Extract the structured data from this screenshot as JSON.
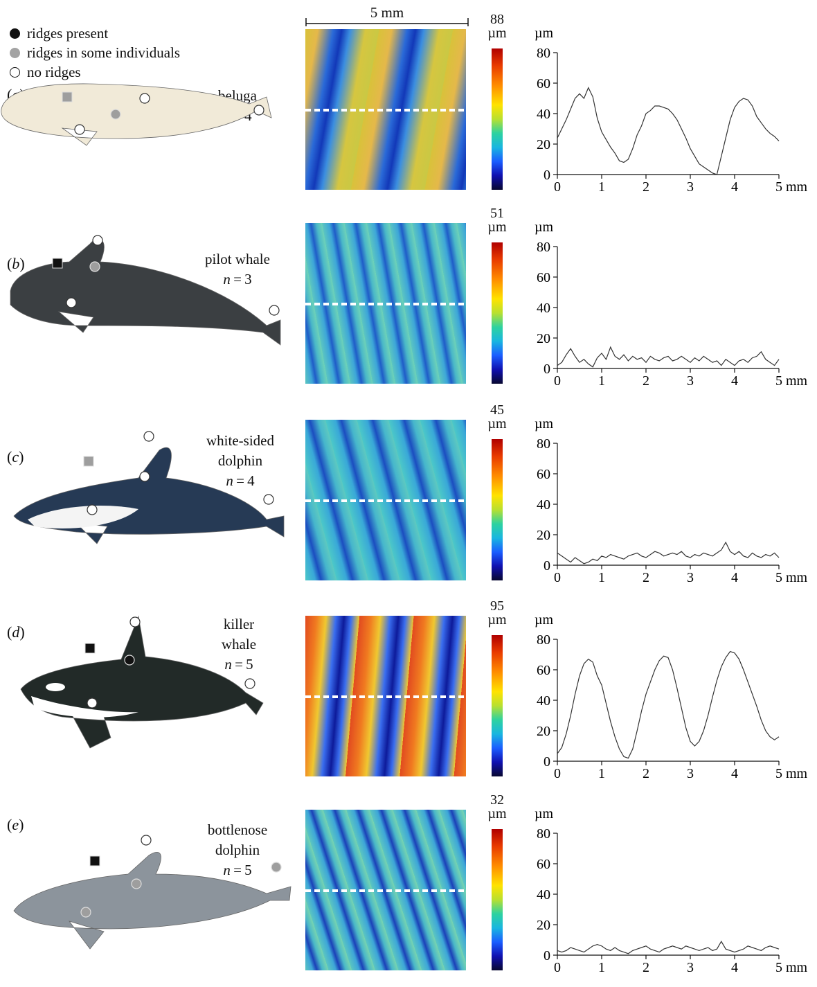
{
  "legend": {
    "present": "ridges present",
    "some": "ridges in some individuals",
    "none": "no ridges"
  },
  "scale_bar_label": "5 mm",
  "colors": {
    "present": "#111111",
    "some": "#9e9e9e",
    "none": "#ffffff"
  },
  "panels": [
    {
      "letter": "a",
      "name_lines": [
        "beluga"
      ],
      "n": "4",
      "cbar_max": "88",
      "cbar_unit": "µm",
      "body_color": "#f1ead8"
    },
    {
      "letter": "b",
      "name_lines": [
        "pilot whale"
      ],
      "n": "3",
      "cbar_max": "51",
      "cbar_unit": "µm",
      "body_color": "#3b3f42"
    },
    {
      "letter": "c",
      "name_lines": [
        "white-sided",
        "dolphin"
      ],
      "n": "4",
      "cbar_max": "45",
      "cbar_unit": "µm",
      "body_color": "#263a55"
    },
    {
      "letter": "d",
      "name_lines": [
        "killer",
        "whale"
      ],
      "n": "5",
      "cbar_max": "95",
      "cbar_unit": "µm",
      "body_color": "#222a28"
    },
    {
      "letter": "e",
      "name_lines": [
        "bottlenose",
        "dolphin"
      ],
      "n": "5",
      "cbar_max": "32",
      "cbar_unit": "µm",
      "body_color": "#8c949c"
    }
  ],
  "chart_data": [
    {
      "type": "line",
      "panel": "a",
      "xlabel": "mm",
      "ylabel": "µm",
      "xlim": [
        0,
        5
      ],
      "ylim": [
        0,
        80
      ],
      "xticks": [
        "0",
        "1",
        "2",
        "3",
        "4",
        "5"
      ],
      "yticks": [
        "0",
        "20",
        "40",
        "60",
        "80"
      ],
      "x": [
        0,
        0.1,
        0.2,
        0.3,
        0.4,
        0.5,
        0.6,
        0.7,
        0.8,
        0.9,
        1.0,
        1.1,
        1.2,
        1.3,
        1.4,
        1.5,
        1.6,
        1.7,
        1.8,
        1.9,
        2.0,
        2.1,
        2.2,
        2.3,
        2.4,
        2.5,
        2.6,
        2.7,
        2.8,
        2.9,
        3.0,
        3.1,
        3.2,
        3.3,
        3.4,
        3.5,
        3.6,
        3.7,
        3.8,
        3.9,
        4.0,
        4.1,
        4.2,
        4.3,
        4.4,
        4.5,
        4.6,
        4.7,
        4.8,
        4.9,
        5.0
      ],
      "y": [
        24,
        30,
        36,
        43,
        50,
        53,
        50,
        57,
        51,
        37,
        28,
        23,
        18,
        14,
        9,
        8,
        10,
        17,
        26,
        32,
        40,
        42,
        45,
        45,
        44,
        43,
        40,
        36,
        30,
        24,
        17,
        12,
        7,
        5,
        3,
        1,
        0,
        12,
        24,
        36,
        44,
        48,
        50,
        49,
        45,
        38,
        34,
        30,
        27,
        25,
        22
      ]
    },
    {
      "type": "line",
      "panel": "b",
      "xlabel": "mm",
      "ylabel": "µm",
      "xlim": [
        0,
        5
      ],
      "ylim": [
        0,
        80
      ],
      "xticks": [
        "0",
        "1",
        "2",
        "3",
        "4",
        "5"
      ],
      "yticks": [
        "0",
        "20",
        "40",
        "60",
        "80"
      ],
      "x": [
        0,
        0.1,
        0.2,
        0.3,
        0.4,
        0.5,
        0.6,
        0.7,
        0.8,
        0.9,
        1.0,
        1.1,
        1.2,
        1.3,
        1.4,
        1.5,
        1.6,
        1.7,
        1.8,
        1.9,
        2.0,
        2.1,
        2.2,
        2.3,
        2.4,
        2.5,
        2.6,
        2.7,
        2.8,
        2.9,
        3.0,
        3.1,
        3.2,
        3.3,
        3.4,
        3.5,
        3.6,
        3.7,
        3.8,
        3.9,
        4.0,
        4.1,
        4.2,
        4.3,
        4.4,
        4.5,
        4.6,
        4.7,
        4.8,
        4.9,
        5.0
      ],
      "y": [
        2,
        4,
        9,
        13,
        8,
        4,
        6,
        3,
        1,
        7,
        10,
        6,
        14,
        8,
        6,
        9,
        5,
        8,
        6,
        7,
        4,
        8,
        6,
        5,
        7,
        8,
        5,
        6,
        8,
        6,
        4,
        7,
        5,
        8,
        6,
        4,
        5,
        2,
        6,
        4,
        2,
        5,
        6,
        4,
        7,
        8,
        11,
        6,
        4,
        2,
        6
      ]
    },
    {
      "type": "line",
      "panel": "c",
      "xlabel": "mm",
      "ylabel": "µm",
      "xlim": [
        0,
        5
      ],
      "ylim": [
        0,
        80
      ],
      "xticks": [
        "0",
        "1",
        "2",
        "3",
        "4",
        "5"
      ],
      "yticks": [
        "0",
        "20",
        "40",
        "60",
        "80"
      ],
      "x": [
        0,
        0.1,
        0.2,
        0.3,
        0.4,
        0.5,
        0.6,
        0.7,
        0.8,
        0.9,
        1.0,
        1.1,
        1.2,
        1.3,
        1.4,
        1.5,
        1.6,
        1.7,
        1.8,
        1.9,
        2.0,
        2.1,
        2.2,
        2.3,
        2.4,
        2.5,
        2.6,
        2.7,
        2.8,
        2.9,
        3.0,
        3.1,
        3.2,
        3.3,
        3.4,
        3.5,
        3.6,
        3.7,
        3.8,
        3.9,
        4.0,
        4.1,
        4.2,
        4.3,
        4.4,
        4.5,
        4.6,
        4.7,
        4.8,
        4.9,
        5.0
      ],
      "y": [
        8,
        6,
        4,
        2,
        5,
        3,
        1,
        2,
        4,
        3,
        6,
        5,
        7,
        6,
        5,
        4,
        6,
        7,
        8,
        6,
        5,
        7,
        9,
        8,
        6,
        7,
        8,
        7,
        9,
        6,
        5,
        7,
        6,
        8,
        7,
        6,
        8,
        10,
        15,
        9,
        7,
        9,
        6,
        5,
        8,
        6,
        5,
        7,
        6,
        8,
        5
      ]
    },
    {
      "type": "line",
      "panel": "d",
      "xlabel": "mm",
      "ylabel": "µm",
      "xlim": [
        0,
        5
      ],
      "ylim": [
        0,
        80
      ],
      "xticks": [
        "0",
        "1",
        "2",
        "3",
        "4",
        "5"
      ],
      "yticks": [
        "0",
        "20",
        "40",
        "60",
        "80"
      ],
      "x": [
        0,
        0.1,
        0.2,
        0.3,
        0.4,
        0.5,
        0.6,
        0.7,
        0.8,
        0.9,
        1.0,
        1.1,
        1.2,
        1.3,
        1.4,
        1.5,
        1.6,
        1.7,
        1.8,
        1.9,
        2.0,
        2.1,
        2.2,
        2.3,
        2.4,
        2.5,
        2.6,
        2.7,
        2.8,
        2.9,
        3.0,
        3.1,
        3.2,
        3.3,
        3.4,
        3.5,
        3.6,
        3.7,
        3.8,
        3.9,
        4.0,
        4.1,
        4.2,
        4.3,
        4.4,
        4.5,
        4.6,
        4.7,
        4.8,
        4.9,
        5.0
      ],
      "y": [
        5,
        9,
        18,
        30,
        44,
        56,
        64,
        67,
        65,
        56,
        50,
        38,
        26,
        16,
        8,
        3,
        2,
        8,
        20,
        33,
        44,
        52,
        60,
        66,
        69,
        68,
        60,
        48,
        35,
        22,
        13,
        10,
        13,
        20,
        30,
        42,
        53,
        62,
        68,
        72,
        71,
        67,
        60,
        52,
        44,
        36,
        27,
        20,
        16,
        14,
        16
      ]
    },
    {
      "type": "line",
      "panel": "e",
      "xlabel": "mm",
      "ylabel": "µm",
      "xlim": [
        0,
        5
      ],
      "ylim": [
        0,
        80
      ],
      "xticks": [
        "0",
        "1",
        "2",
        "3",
        "4",
        "5"
      ],
      "yticks": [
        "0",
        "20",
        "40",
        "60",
        "80"
      ],
      "x": [
        0,
        0.1,
        0.2,
        0.3,
        0.4,
        0.5,
        0.6,
        0.7,
        0.8,
        0.9,
        1.0,
        1.1,
        1.2,
        1.3,
        1.4,
        1.5,
        1.6,
        1.7,
        1.8,
        1.9,
        2.0,
        2.1,
        2.2,
        2.3,
        2.4,
        2.5,
        2.6,
        2.7,
        2.8,
        2.9,
        3.0,
        3.1,
        3.2,
        3.3,
        3.4,
        3.5,
        3.6,
        3.7,
        3.8,
        3.9,
        4.0,
        4.1,
        4.2,
        4.3,
        4.4,
        4.5,
        4.6,
        4.7,
        4.8,
        4.9,
        5.0
      ],
      "y": [
        3,
        2,
        3,
        5,
        4,
        3,
        2,
        4,
        6,
        7,
        6,
        4,
        3,
        5,
        3,
        2,
        1,
        3,
        4,
        5,
        6,
        4,
        3,
        2,
        4,
        5,
        6,
        5,
        4,
        6,
        5,
        4,
        3,
        4,
        5,
        3,
        4,
        9,
        4,
        3,
        2,
        3,
        4,
        6,
        5,
        4,
        3,
        5,
        6,
        5,
        4
      ]
    }
  ]
}
